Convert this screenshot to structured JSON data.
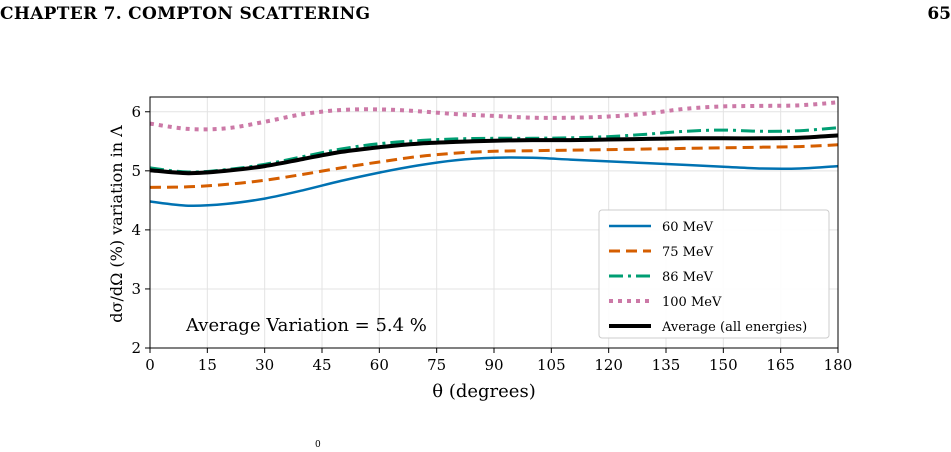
{
  "header": {
    "chapter_title": "CHAPTER 7.  COMPTON SCATTERING",
    "page_number": "65"
  },
  "chart_data": {
    "type": "line",
    "title": "",
    "xlabel": "θ (degrees)",
    "ylabel": "dσ/dΩ (%) variation in Λ",
    "xlim": [
      0,
      180
    ],
    "ylim": [
      2,
      6.25
    ],
    "xticks": [
      0,
      15,
      30,
      45,
      60,
      75,
      90,
      105,
      120,
      135,
      150,
      165,
      180
    ],
    "yticks": [
      2,
      3,
      4,
      5,
      6
    ],
    "grid": true,
    "legend_position": "lower-right",
    "annotation": "Average Variation = 5.4 %",
    "x": [
      0,
      10,
      20,
      30,
      40,
      50,
      60,
      70,
      80,
      90,
      100,
      110,
      120,
      130,
      140,
      150,
      160,
      170,
      180
    ],
    "series": [
      {
        "name": "60 MeV",
        "color": "#0072B2",
        "style": "solid",
        "values": [
          4.48,
          4.41,
          4.44,
          4.53,
          4.67,
          4.83,
          4.97,
          5.09,
          5.18,
          5.22,
          5.22,
          5.19,
          5.16,
          5.13,
          5.1,
          5.07,
          5.04,
          5.04,
          5.08
        ]
      },
      {
        "name": "75 MeV",
        "color": "#D55E00",
        "style": "dashed",
        "values": [
          4.72,
          4.73,
          4.77,
          4.84,
          4.94,
          5.05,
          5.15,
          5.24,
          5.3,
          5.33,
          5.34,
          5.35,
          5.36,
          5.37,
          5.38,
          5.39,
          5.4,
          5.41,
          5.44
        ]
      },
      {
        "name": "86 MeV",
        "color": "#009E73",
        "style": "dashdot",
        "values": [
          5.05,
          4.98,
          5.02,
          5.11,
          5.24,
          5.37,
          5.46,
          5.51,
          5.54,
          5.55,
          5.55,
          5.56,
          5.58,
          5.62,
          5.67,
          5.69,
          5.67,
          5.68,
          5.73
        ]
      },
      {
        "name": "100 MeV",
        "color": "#CC79A7",
        "style": "dotted",
        "values": [
          5.8,
          5.71,
          5.72,
          5.83,
          5.96,
          6.03,
          6.04,
          6.01,
          5.96,
          5.93,
          5.9,
          5.9,
          5.92,
          5.97,
          6.05,
          6.09,
          6.1,
          6.11,
          6.16
        ]
      },
      {
        "name": "Average (all energies)",
        "color": "#000000",
        "style": "solid-thick",
        "values": [
          5.01,
          4.96,
          5.0,
          5.08,
          5.2,
          5.32,
          5.4,
          5.46,
          5.49,
          5.51,
          5.52,
          5.52,
          5.53,
          5.54,
          5.55,
          5.55,
          5.55,
          5.56,
          5.6
        ]
      }
    ]
  },
  "footer_fragment": "0"
}
